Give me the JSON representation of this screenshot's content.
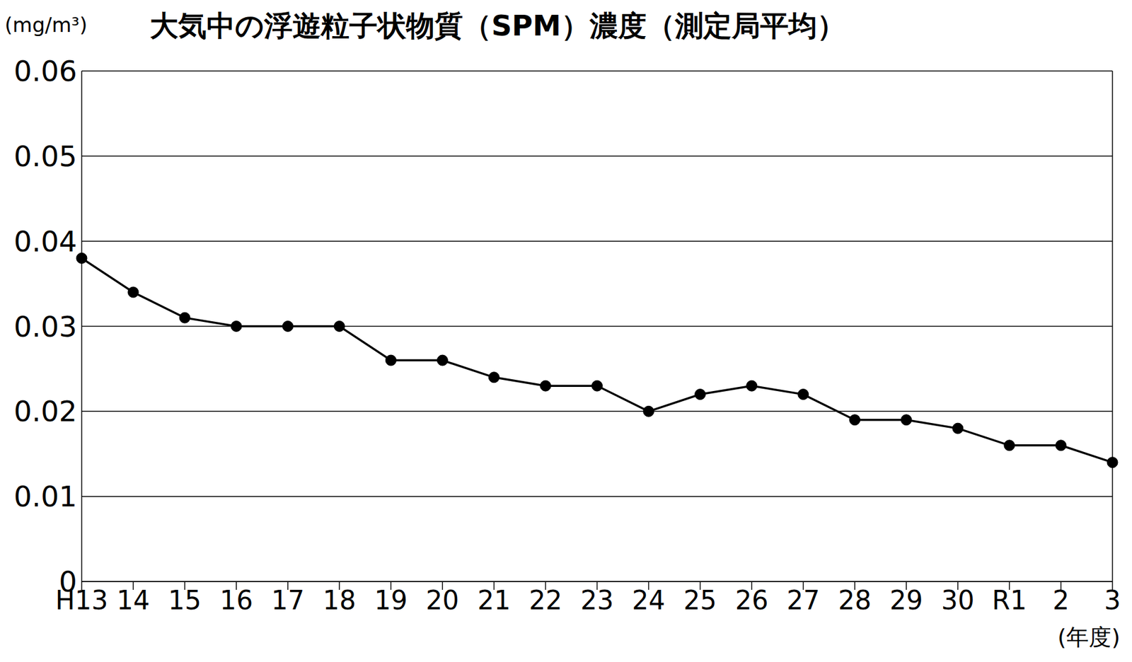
{
  "chart_data": {
    "type": "line",
    "title": "大気中の浮遊粒子状物質（SPM）濃度（測定局平均）",
    "y_label": "(mg/m³)",
    "x_label": "(年度)",
    "categories": [
      "H13",
      "14",
      "15",
      "16",
      "17",
      "18",
      "19",
      "20",
      "21",
      "22",
      "23",
      "24",
      "25",
      "26",
      "27",
      "28",
      "29",
      "30",
      "R1",
      "2",
      "3"
    ],
    "values": [
      0.038,
      0.034,
      0.031,
      0.03,
      0.03,
      0.03,
      0.026,
      0.026,
      0.024,
      0.023,
      0.023,
      0.02,
      0.022,
      0.023,
      0.022,
      0.019,
      0.019,
      0.018,
      0.016,
      0.016,
      0.014
    ],
    "color": "#000000",
    "marker": "circle",
    "ylim": [
      0,
      0.06
    ],
    "yticks": [
      0,
      0.01,
      0.02,
      0.03,
      0.04,
      0.05,
      0.06
    ],
    "grid": true
  }
}
